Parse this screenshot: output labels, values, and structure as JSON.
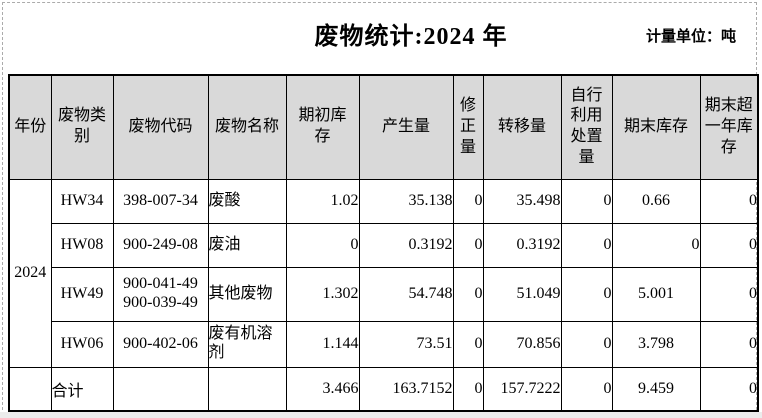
{
  "page": {
    "title": "废物统计:2024 年",
    "unit_label": "计量单位：吨"
  },
  "table": {
    "headers": [
      "年份",
      "废物类\n别",
      "废物代码",
      "废物名称",
      "期初库\n存",
      "产生量",
      "修\n正\n量",
      "转移量",
      "自行\n利用\n处置\n量",
      "期末库存",
      "期末超\n一年库\n存"
    ],
    "year": "2024",
    "rows": [
      {
        "category": "HW34",
        "code": "398-007-34",
        "name": "废酸",
        "opening": "1.02",
        "generated": "35.138",
        "corrected": "0",
        "transferred": "35.498",
        "self_disposed": "0",
        "closing": "0.66",
        "over_one_year": "0"
      },
      {
        "category": "HW08",
        "code": "900-249-08",
        "name": "废油",
        "opening": "0",
        "generated": "0.3192",
        "corrected": "0",
        "transferred": "0.3192",
        "self_disposed": "0",
        "closing": "0",
        "over_one_year": "0"
      },
      {
        "category": "HW49",
        "code": "900-041-49\n900-039-49",
        "name": "其他废物",
        "opening": "1.302",
        "generated": "54.748",
        "corrected": "0",
        "transferred": "51.049",
        "self_disposed": "0",
        "closing": "5.001",
        "over_one_year": "0"
      },
      {
        "category": "HW06",
        "code": "900-402-06",
        "name": "废有机溶剂",
        "opening": "1.144",
        "generated": "73.51",
        "corrected": "0",
        "transferred": "70.856",
        "self_disposed": "0",
        "closing": "3.798",
        "over_one_year": "0"
      }
    ],
    "total": {
      "label": "合计",
      "code": "",
      "name": "",
      "opening": "3.466",
      "generated": "163.7152",
      "corrected": "0",
      "transferred": "157.7222",
      "self_disposed": "0",
      "closing": "9.459",
      "over_one_year": "0"
    }
  }
}
